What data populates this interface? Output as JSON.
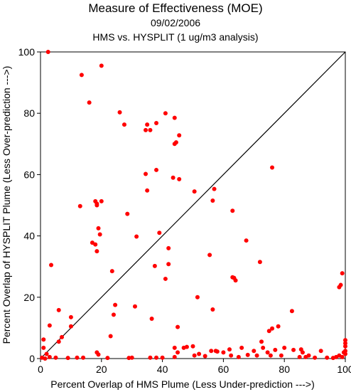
{
  "chart_data": {
    "type": "scatter",
    "title": "Measure of Effectiveness (MOE)",
    "subtitle": "09/02/2006",
    "subtitle2": "HMS vs. HYSPLIT  (1 ug/m3 analysis)",
    "xlabel": "Percent Overlap of HMS Plume (Less Under-prediction --->)",
    "ylabel": "Percent Overlap of HYSPLIT Plume (Less Over-prediction --->)",
    "xlim": [
      0,
      100
    ],
    "ylim": [
      0,
      100
    ],
    "xticks": [
      "0",
      "20",
      "40",
      "60",
      "80",
      "100"
    ],
    "yticks": [
      "0",
      "20",
      "40",
      "60",
      "80",
      "100"
    ],
    "grid": false,
    "reference_line": "y = x",
    "point_color": "#ff0000",
    "series": [
      {
        "points": [
          [
            2.5,
            100
          ],
          [
            13.5,
            92.5
          ],
          [
            20,
            95.5
          ],
          [
            16,
            83.5
          ],
          [
            26,
            80.3
          ],
          [
            27.5,
            76.3
          ],
          [
            34.5,
            74.5
          ],
          [
            36,
            74.5
          ],
          [
            35,
            76.3
          ],
          [
            38,
            76.8
          ],
          [
            41,
            80
          ],
          [
            44,
            78.5
          ],
          [
            44.5,
            70.5
          ],
          [
            44,
            70
          ],
          [
            45.5,
            72.8
          ],
          [
            34.5,
            60.2
          ],
          [
            38,
            61.5
          ],
          [
            43.5,
            59
          ],
          [
            45.5,
            58.5
          ],
          [
            35,
            54.8
          ],
          [
            50.5,
            54.5
          ],
          [
            57,
            55.3
          ],
          [
            56.5,
            51.5
          ],
          [
            63,
            48.2
          ],
          [
            76,
            62.3
          ],
          [
            18,
            51.3
          ],
          [
            18.5,
            50.5
          ],
          [
            20,
            51.3
          ],
          [
            18.5,
            50
          ],
          [
            13,
            49.7
          ],
          [
            28.5,
            47.2
          ],
          [
            19,
            42.5
          ],
          [
            19.5,
            40.5
          ],
          [
            18,
            37.2
          ],
          [
            18.5,
            35
          ],
          [
            17,
            37.8
          ],
          [
            31.5,
            39.8
          ],
          [
            39,
            41
          ],
          [
            42,
            36
          ],
          [
            42,
            30.8
          ],
          [
            55.5,
            33.8
          ],
          [
            67.5,
            38.5
          ],
          [
            64,
            25.5
          ],
          [
            63,
            26.5
          ],
          [
            63.5,
            26.3
          ],
          [
            51.5,
            20
          ],
          [
            56.5,
            16
          ],
          [
            45,
            10.3
          ],
          [
            3.5,
            30.5
          ],
          [
            23.5,
            28.5
          ],
          [
            37.5,
            30.2
          ],
          [
            41,
            26
          ],
          [
            24.5,
            17.5
          ],
          [
            24,
            14.3
          ],
          [
            31,
            17
          ],
          [
            36.5,
            13
          ],
          [
            23,
            7.3
          ],
          [
            18.5,
            2
          ],
          [
            10,
            13.5
          ],
          [
            10,
            10.5
          ],
          [
            6,
            15.8
          ],
          [
            7,
            7
          ],
          [
            3,
            10.8
          ],
          [
            2,
            1.5
          ],
          [
            1,
            6.2
          ],
          [
            0.5,
            0.3
          ],
          [
            6,
            5.5
          ],
          [
            72,
            31.5
          ],
          [
            72.5,
            5.5
          ],
          [
            82.5,
            15.5
          ],
          [
            78,
            10.5
          ],
          [
            99,
            27.8
          ],
          [
            98,
            23.3
          ],
          [
            98.5,
            24
          ],
          [
            100,
            2.5
          ],
          [
            100,
            5
          ],
          [
            100,
            6
          ],
          [
            99.5,
            2
          ],
          [
            98,
            1
          ],
          [
            97,
            0.5
          ],
          [
            96,
            0.2
          ],
          [
            90,
            0.3
          ],
          [
            88,
            1
          ],
          [
            85,
            0.5
          ],
          [
            80,
            3.5
          ],
          [
            77,
            2.8
          ],
          [
            75,
            9
          ],
          [
            76,
            9.8
          ],
          [
            74.5,
            2
          ],
          [
            70,
            2.5
          ],
          [
            68,
            1.2
          ],
          [
            65,
            0.5
          ],
          [
            62,
            3
          ],
          [
            60,
            2
          ],
          [
            58,
            2.3
          ],
          [
            56,
            2.5
          ],
          [
            54,
            0.8
          ],
          [
            52,
            1.5
          ],
          [
            50,
            4
          ],
          [
            48,
            3.8
          ],
          [
            47,
            3.5
          ],
          [
            45,
            2
          ],
          [
            44,
            0.5
          ],
          [
            40,
            0.3
          ],
          [
            38,
            0.3
          ],
          [
            36,
            0.3
          ],
          [
            30,
            0.3
          ],
          [
            29,
            0.2
          ],
          [
            22,
            0.2
          ],
          [
            19,
            1.3
          ],
          [
            14,
            0.3
          ],
          [
            12,
            0.3
          ],
          [
            9,
            0.2
          ],
          [
            5,
            0.3
          ],
          [
            1,
            3.5
          ],
          [
            1.5,
            0
          ],
          [
            3,
            0.5
          ],
          [
            44,
            3.5
          ],
          [
            50.5,
            1
          ],
          [
            57.5,
            2.5
          ],
          [
            62.5,
            1
          ],
          [
            66,
            3.5
          ],
          [
            71,
            1
          ],
          [
            73,
            3.5
          ],
          [
            75.5,
            1
          ],
          [
            79,
            1
          ],
          [
            83,
            2.8
          ],
          [
            85.5,
            3
          ],
          [
            86,
            2
          ],
          [
            87,
            0.5
          ],
          [
            92,
            2.5
          ],
          [
            94,
            0.3
          ],
          [
            99,
            0.5
          ],
          [
            100,
            1.5
          ],
          [
            100,
            4
          ]
        ]
      }
    ]
  }
}
